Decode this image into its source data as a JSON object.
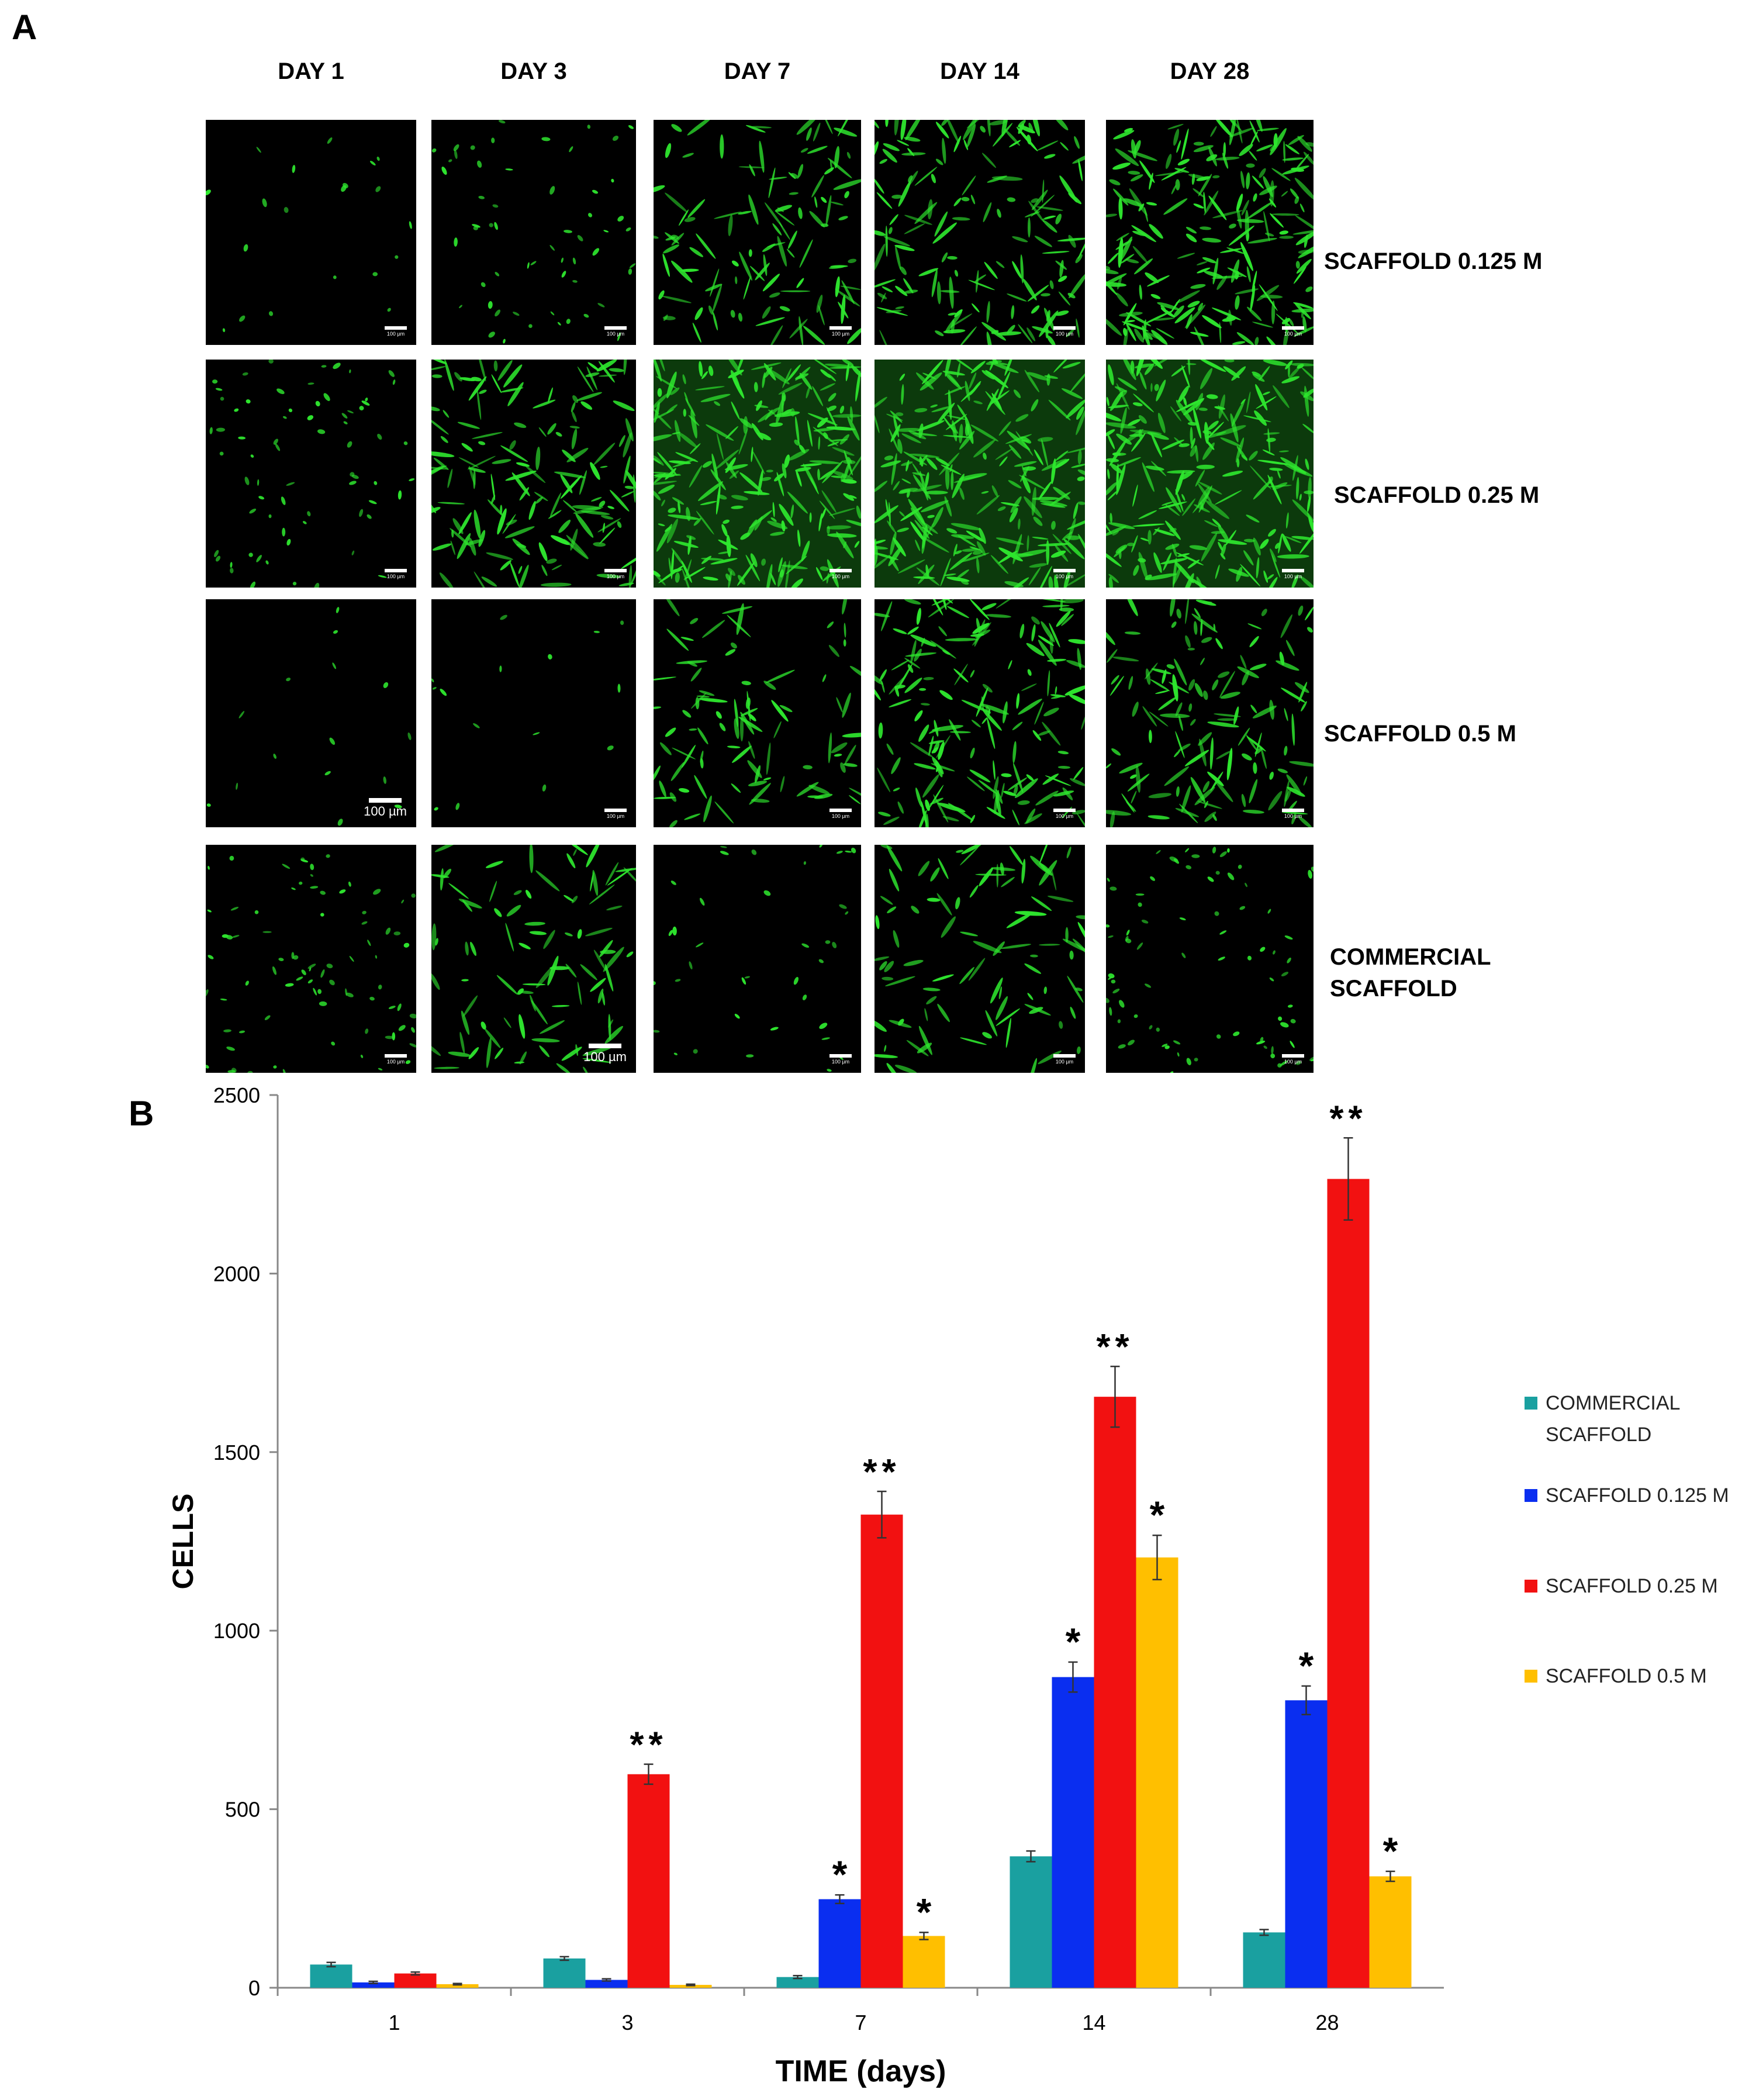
{
  "panels": {
    "a": "A",
    "b": "B"
  },
  "grid": {
    "columns": [
      "DAY 1",
      "DAY 3",
      "DAY 7",
      "DAY 14",
      "DAY 28"
    ],
    "rows": [
      {
        "label": "SCAFFOLD 0.125 M",
        "densities": [
          0.05,
          0.2,
          0.45,
          0.65,
          0.9
        ]
      },
      {
        "label": "SCAFFOLD 0.25 M",
        "densities": [
          0.25,
          0.6,
          1.0,
          1.0,
          1.0
        ]
      },
      {
        "label": "SCAFFOLD 0.5 M",
        "densities": [
          0.03,
          0.03,
          0.35,
          0.7,
          0.55
        ]
      },
      {
        "label": "COMMERCIAL SCAFFOLD",
        "densities": [
          0.3,
          0.35,
          0.12,
          0.35,
          0.3
        ]
      }
    ],
    "scale_label": "100 µm",
    "cell_color": "#2ee62e"
  },
  "chart_data": {
    "type": "bar",
    "xlabel": "TIME (days)",
    "ylabel": "CELLS",
    "ylim": [
      0,
      2500
    ],
    "yticks": [
      "0",
      "500",
      "1000",
      "1500",
      "2000",
      "2500"
    ],
    "categories": [
      "1",
      "3",
      "7",
      "14",
      "28"
    ],
    "legend_position": "right",
    "series": [
      {
        "name": "COMMERCIAL SCAFFOLD",
        "color": "#1aa0a0",
        "values": [
          65,
          82,
          30,
          368,
          155
        ],
        "errors": [
          6,
          5,
          4,
          15,
          8
        ],
        "marks": [
          "",
          "",
          "",
          "",
          ""
        ]
      },
      {
        "name": "SCAFFOLD 0.125 M",
        "color": "#0a2ef0",
        "values": [
          15,
          22,
          248,
          870,
          805
        ],
        "errors": [
          3,
          3,
          12,
          42,
          40
        ],
        "marks": [
          "",
          "",
          "*",
          "*",
          "*"
        ]
      },
      {
        "name": "SCAFFOLD 0.25 M",
        "color": "#f21111",
        "values": [
          40,
          598,
          1325,
          1655,
          2265
        ],
        "errors": [
          4,
          28,
          65,
          85,
          115
        ],
        "marks": [
          "",
          "**",
          "**",
          "**",
          "**"
        ]
      },
      {
        "name": "SCAFFOLD 0.5 M",
        "color": "#ffbf00",
        "values": [
          10,
          8,
          145,
          1205,
          312
        ],
        "errors": [
          2,
          2,
          10,
          62,
          14
        ],
        "marks": [
          "",
          "",
          "*",
          "*",
          "*"
        ]
      }
    ]
  }
}
